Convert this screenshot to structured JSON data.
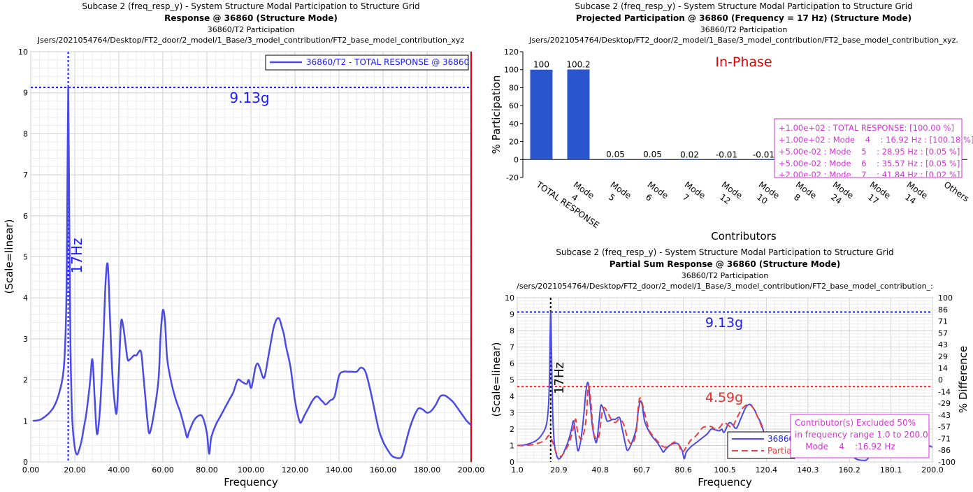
{
  "chart_data": [
    {
      "type": "line",
      "header": {
        "line1": "Subcase 2 (freq_resp_y) - System Structure Modal Participation to Structure Grid",
        "line2": "Response @ 36860 (Structure Mode)",
        "line3": "36860/T2 Participation",
        "line4": "Jsers/2021054764/Desktop/FT2_door/2_model/1_Base/3_model_contribution/FT2_base_model_contribution_xyz"
      },
      "xlabel": "Frequency",
      "ylabel": "(Scale=linear)",
      "xlim": [
        0,
        200
      ],
      "ylim": [
        0,
        10
      ],
      "xticks": [
        "0.00",
        "20.00",
        "40.00",
        "60.00",
        "80.00",
        "100.00",
        "120.00",
        "140.00",
        "160.00",
        "180.00",
        "200.00"
      ],
      "yticks": [
        "0",
        "1",
        "2",
        "3",
        "4",
        "5",
        "6",
        "7",
        "8",
        "9",
        "10"
      ],
      "grid": true,
      "legend_position": "top-right",
      "series": [
        {
          "name": "36860/T2 - TOTAL RESPONSE @ 36860",
          "color": "#4a4ae6",
          "x": [
            1,
            5,
            10,
            13,
            15,
            16,
            16.5,
            17,
            17.5,
            18,
            18.5,
            19,
            20,
            21,
            22,
            23,
            24,
            25,
            26,
            27,
            28,
            29,
            30,
            31,
            32,
            33,
            34,
            35,
            36,
            37,
            38,
            39,
            40,
            41,
            42,
            43,
            44,
            45,
            46,
            47,
            48,
            50,
            51,
            52,
            53,
            54,
            56,
            58,
            59,
            60,
            61,
            62,
            64,
            66,
            68,
            70,
            71,
            72,
            74,
            76,
            78,
            80,
            81,
            82,
            84,
            86,
            88,
            90,
            92,
            94,
            96,
            98,
            99,
            100,
            101,
            102,
            103,
            104,
            106,
            108,
            110,
            111,
            112,
            113,
            114,
            115,
            116,
            118,
            120,
            122,
            123,
            124,
            126,
            128,
            130,
            132,
            133,
            134,
            136,
            138,
            140,
            142,
            144,
            146,
            148,
            150,
            152,
            154,
            156,
            158,
            160,
            162,
            164,
            166,
            168,
            169,
            170,
            172,
            174,
            176,
            178,
            180,
            182,
            184,
            186,
            188,
            190,
            192,
            194,
            196,
            198,
            200
          ],
          "y": [
            1.0,
            1.05,
            1.3,
            1.7,
            2.3,
            3.5,
            5.5,
            9.13,
            6.0,
            3.0,
            1.6,
            0.9,
            0.35,
            0.18,
            0.3,
            0.5,
            0.8,
            1.1,
            1.5,
            2.0,
            2.5,
            1.6,
            0.7,
            1.0,
            1.8,
            3.0,
            4.4,
            4.8,
            3.5,
            2.2,
            1.5,
            1.2,
            2.2,
            3.4,
            3.3,
            2.9,
            2.5,
            2.5,
            2.55,
            2.6,
            2.6,
            2.7,
            2.2,
            1.6,
            1.0,
            0.7,
            1.2,
            2.0,
            3.1,
            3.7,
            3.4,
            2.5,
            1.9,
            1.5,
            1.2,
            0.8,
            0.6,
            0.75,
            1.0,
            1.12,
            1.1,
            0.7,
            0.2,
            0.6,
            0.9,
            1.1,
            1.3,
            1.5,
            1.7,
            2.0,
            1.95,
            1.9,
            2.0,
            1.8,
            2.0,
            2.3,
            2.4,
            2.3,
            2.05,
            2.6,
            3.2,
            3.4,
            3.5,
            3.48,
            3.3,
            3.1,
            2.8,
            2.3,
            1.5,
            1.0,
            0.98,
            1.1,
            1.3,
            1.5,
            1.6,
            1.5,
            1.45,
            1.4,
            1.5,
            1.6,
            2.1,
            2.2,
            2.2,
            2.2,
            2.2,
            2.3,
            2.2,
            1.8,
            1.3,
            0.8,
            0.5,
            0.3,
            0.15,
            0.1,
            0.1,
            0.2,
            0.4,
            0.8,
            1.1,
            1.3,
            1.28,
            1.2,
            1.25,
            1.4,
            1.6,
            1.62,
            1.55,
            1.45,
            1.3,
            1.15,
            1.0,
            0.9
          ]
        }
      ],
      "annotations": [
        {
          "text": "9.13g",
          "y": 9.13,
          "color": "#1a1aff"
        },
        {
          "text": "17Hz",
          "x": 17,
          "color": "#1a1aff"
        }
      ],
      "marker_right_x": 200
    },
    {
      "type": "bar",
      "header": {
        "line1": "Subcase 2 (freq_resp_y) - System Structure Modal Participation to Structure Grid",
        "line2": "Projected Participation @ 36860 (Frequency = 17 Hz) (Structure Mode)",
        "line3": "36860/T2 Participation",
        "line4": "Jsers/2021054764/Desktop/FT2_door/2_model/1_Base/3_model_contribution/FT2_base_model_contribution_xyz."
      },
      "phase_label": "In-Phase",
      "xlabel": "Contributors",
      "ylabel": "% Participation",
      "ylim": [
        -20,
        120
      ],
      "yticks": [
        "-20",
        "0",
        "20",
        "40",
        "60",
        "80",
        "100",
        "120"
      ],
      "grid": false,
      "bar_color": "#2a55cc",
      "categories": [
        [
          "TOTAL RESPONSE"
        ],
        [
          "Mode",
          "4"
        ],
        [
          "Mode",
          "5"
        ],
        [
          "Mode",
          "6"
        ],
        [
          "Mode",
          "7"
        ],
        [
          "Mode",
          "12"
        ],
        [
          "Mode",
          "10"
        ],
        [
          "Mode",
          "8"
        ],
        [
          "Mode",
          "24"
        ],
        [
          "Mode",
          "17"
        ],
        [
          "Mode",
          "14"
        ],
        [
          "Others"
        ]
      ],
      "values": [
        100,
        100.2,
        0.05,
        0.05,
        0.02,
        -0.01,
        -0.01,
        null,
        null,
        null,
        null,
        null
      ],
      "value_labels": [
        "100",
        "100.2",
        "0.05",
        "0.05",
        "0.02",
        "-0.01",
        "-0.01",
        "",
        "",
        "",
        "",
        ""
      ],
      "info_box": [
        "+1.00e+02 : TOTAL RESPONSE: [100.00 %]",
        "+1.00e+02 : Mode    4    : 16.92 Hz : [100.18 %]",
        "+5.00e-02 : Mode    5    : 28.95 Hz : [0.05 %]",
        "+5.00e-02 : Mode    6    : 35.57 Hz : [0.05 %]",
        "+2.00e-02 : Mode    7    : 41.84 Hz : [0.02 %]"
      ]
    },
    {
      "type": "line",
      "header": {
        "line1": "Subcase 2 (freq_resp_y) - System Structure Modal Participation to Structure Grid",
        "line2": "Partial Sum Response @ 36860 (Structure Mode)",
        "line3": "36860/T2 Participation",
        "line4": "/sers/2021054764/Desktop/FT2_door/2_model/1_Base/3_model_contribution/FT2_base_model_contribution_:"
      },
      "xlabel": "Frequency",
      "ylabel": "(Scale=linear)",
      "y2label": "% Difference",
      "xlim": [
        1.0,
        200.0
      ],
      "ylim": [
        0,
        10
      ],
      "y2lim": [
        -100,
        100
      ],
      "xticks": [
        "1.0",
        "20.9",
        "40.8",
        "60.7",
        "80.6",
        "100.5",
        "120.4",
        "140.3",
        "160.2",
        "180.1",
        "200.0"
      ],
      "yticks": [
        "0",
        "1",
        "2",
        "3",
        "4",
        "5",
        "6",
        "7",
        "8",
        "9",
        "10"
      ],
      "y2ticks": [
        "-100",
        "-86",
        "-71",
        "-57",
        "-43",
        "-29",
        "-14",
        "0",
        "14",
        "29",
        "43",
        "57",
        "71",
        "86",
        "100"
      ],
      "grid": true,
      "legend_position": "bottom-center",
      "series": [
        {
          "name": "36860",
          "color": "#4a4ae6",
          "dash": false,
          "x": [
            1,
            5,
            10,
            13,
            15,
            16,
            16.5,
            17,
            17.5,
            18,
            18.5,
            19,
            20,
            21,
            22,
            23,
            24,
            25,
            26,
            27,
            28,
            29,
            30,
            31,
            32,
            33,
            34,
            35,
            36,
            37,
            38,
            39,
            40,
            41,
            42,
            43,
            44,
            45,
            46,
            47,
            48,
            50,
            51,
            52,
            53,
            54,
            56,
            58,
            59,
            60,
            61,
            62,
            64,
            66,
            68,
            70,
            71,
            72,
            74,
            76,
            78,
            80,
            81,
            82,
            84,
            86,
            88,
            90,
            92,
            94,
            96,
            98,
            99,
            100,
            101,
            102,
            103,
            104,
            106,
            108,
            110,
            111,
            112,
            113,
            114,
            115,
            116,
            118,
            120,
            122,
            123,
            124,
            126,
            128,
            130,
            132,
            133,
            134,
            136,
            138,
            140,
            142,
            144,
            146,
            148,
            150,
            152,
            154,
            156,
            158,
            160,
            162,
            164,
            166,
            168,
            169,
            170,
            172,
            174,
            176,
            178,
            180,
            182,
            184,
            186,
            188,
            190,
            192,
            194,
            196,
            198,
            200
          ],
          "y": [
            1.0,
            1.05,
            1.3,
            1.7,
            2.3,
            3.5,
            5.5,
            9.13,
            6.0,
            3.0,
            1.6,
            0.9,
            0.35,
            0.18,
            0.3,
            0.5,
            0.8,
            1.1,
            1.5,
            2.0,
            2.5,
            1.6,
            0.7,
            1.0,
            1.8,
            3.0,
            4.4,
            4.8,
            3.5,
            2.2,
            1.5,
            1.2,
            2.2,
            3.4,
            3.3,
            2.9,
            2.5,
            2.5,
            2.55,
            2.6,
            2.6,
            2.7,
            2.2,
            1.6,
            1.0,
            0.7,
            1.2,
            2.0,
            3.1,
            3.7,
            3.4,
            2.5,
            1.9,
            1.5,
            1.2,
            0.8,
            0.6,
            0.75,
            1.0,
            1.12,
            1.1,
            0.7,
            0.2,
            0.6,
            0.9,
            1.1,
            1.3,
            1.5,
            1.7,
            2.0,
            1.95,
            1.9,
            2.0,
            1.8,
            2.0,
            2.3,
            2.4,
            2.3,
            2.05,
            2.6,
            3.2,
            3.4,
            3.5,
            3.48,
            3.3,
            3.1,
            2.8,
            2.3,
            1.5,
            1.0,
            0.98,
            1.1,
            1.3,
            1.5,
            1.6,
            1.5,
            1.45,
            1.4,
            1.5,
            1.6,
            2.1,
            2.2,
            2.2,
            2.2,
            2.2,
            2.3,
            2.2,
            1.8,
            1.3,
            0.8,
            0.5,
            0.3,
            0.15,
            0.1,
            0.1,
            0.2,
            0.4,
            0.8,
            1.1,
            1.3,
            1.28,
            1.2,
            1.25,
            1.4,
            1.6,
            1.62,
            1.55,
            1.45,
            1.3,
            1.15,
            1.0,
            0.9
          ]
        },
        {
          "name": "Partia",
          "color": "#e84040",
          "dash": true,
          "x": [
            1,
            5,
            10,
            14,
            16,
            17,
            18,
            19,
            20,
            22,
            24,
            26,
            28,
            29,
            30,
            32,
            34,
            35,
            36,
            37,
            38,
            40,
            42,
            44,
            46,
            48,
            50,
            52,
            54,
            56,
            58,
            59,
            60,
            62,
            64,
            66,
            68,
            70,
            72,
            74,
            76,
            78,
            80,
            82,
            84,
            86,
            88,
            90,
            92,
            94,
            96,
            98,
            100,
            102,
            104,
            106,
            108,
            110,
            112,
            114,
            116,
            118,
            120
          ],
          "y": [
            1.0,
            1.0,
            1.1,
            1.3,
            1.6,
            1.5,
            1.2,
            0.8,
            0.5,
            0.35,
            0.7,
            1.2,
            2.1,
            2.6,
            1.8,
            1.4,
            2.6,
            4.6,
            4.0,
            2.5,
            1.6,
            1.5,
            3.2,
            3.1,
            2.6,
            2.4,
            2.6,
            2.3,
            1.4,
            1.1,
            1.8,
            3.3,
            3.9,
            3.0,
            2.0,
            1.6,
            1.3,
            1.0,
            0.9,
            1.0,
            1.2,
            1.15,
            0.6,
            0.9,
            1.3,
            1.5,
            1.8,
            2.1,
            2.15,
            2.15,
            2.0,
            2.1,
            2.4,
            2.25,
            2.1,
            2.6,
            3.1,
            3.4,
            3.5,
            3.3,
            2.8,
            2.2,
            1.5
          ]
        }
      ],
      "annotations": [
        {
          "text": "9.13g",
          "y": 9.13,
          "color": "#1a1aff"
        },
        {
          "text": "4.59g",
          "y": 4.59,
          "color": "#e03030"
        },
        {
          "text": "17Hz",
          "x": 17,
          "color": "#000000"
        }
      ],
      "info_box": [
        "Contributor(s) Excluded 50%",
        "in frequency range 1.0 to 200.0",
        "    Mode    4    :16.92 Hz"
      ]
    }
  ],
  "colors": {
    "blue_line": "#4a4ae6",
    "red_line": "#e84040",
    "marker_blue": "#1a1aff",
    "info_magenta": "#d633d6",
    "right_red": "#e00000"
  }
}
